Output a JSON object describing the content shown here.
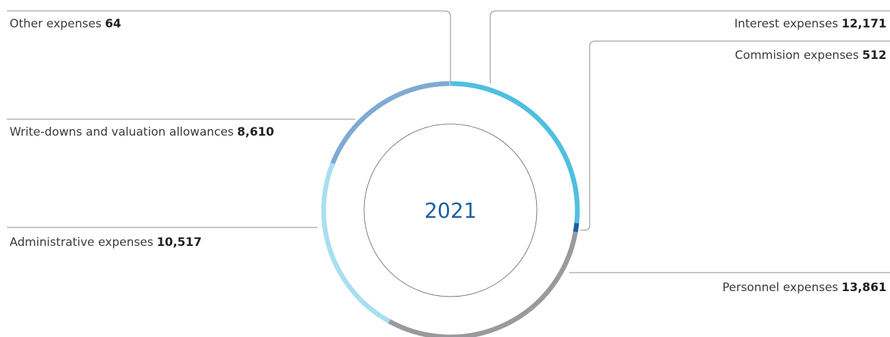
{
  "chart_data": {
    "type": "donut",
    "center_label": "2021",
    "categories": [
      "Interest expenses",
      "Commision expenses",
      "Personnel expenses",
      "Administrative expenses",
      "Write-downs and valuation allowances",
      "Other expenses"
    ],
    "values": [
      12171,
      512,
      13861,
      10517,
      8610,
      64
    ],
    "value_labels": [
      "12,171",
      "512",
      "13,861",
      "10,517",
      "8,610",
      "64"
    ],
    "colors": [
      "#4fbfe0",
      "#1b5fa6",
      "#9a9a9c",
      "#a9dff0",
      "#7faad3",
      "#b7cde6"
    ]
  }
}
